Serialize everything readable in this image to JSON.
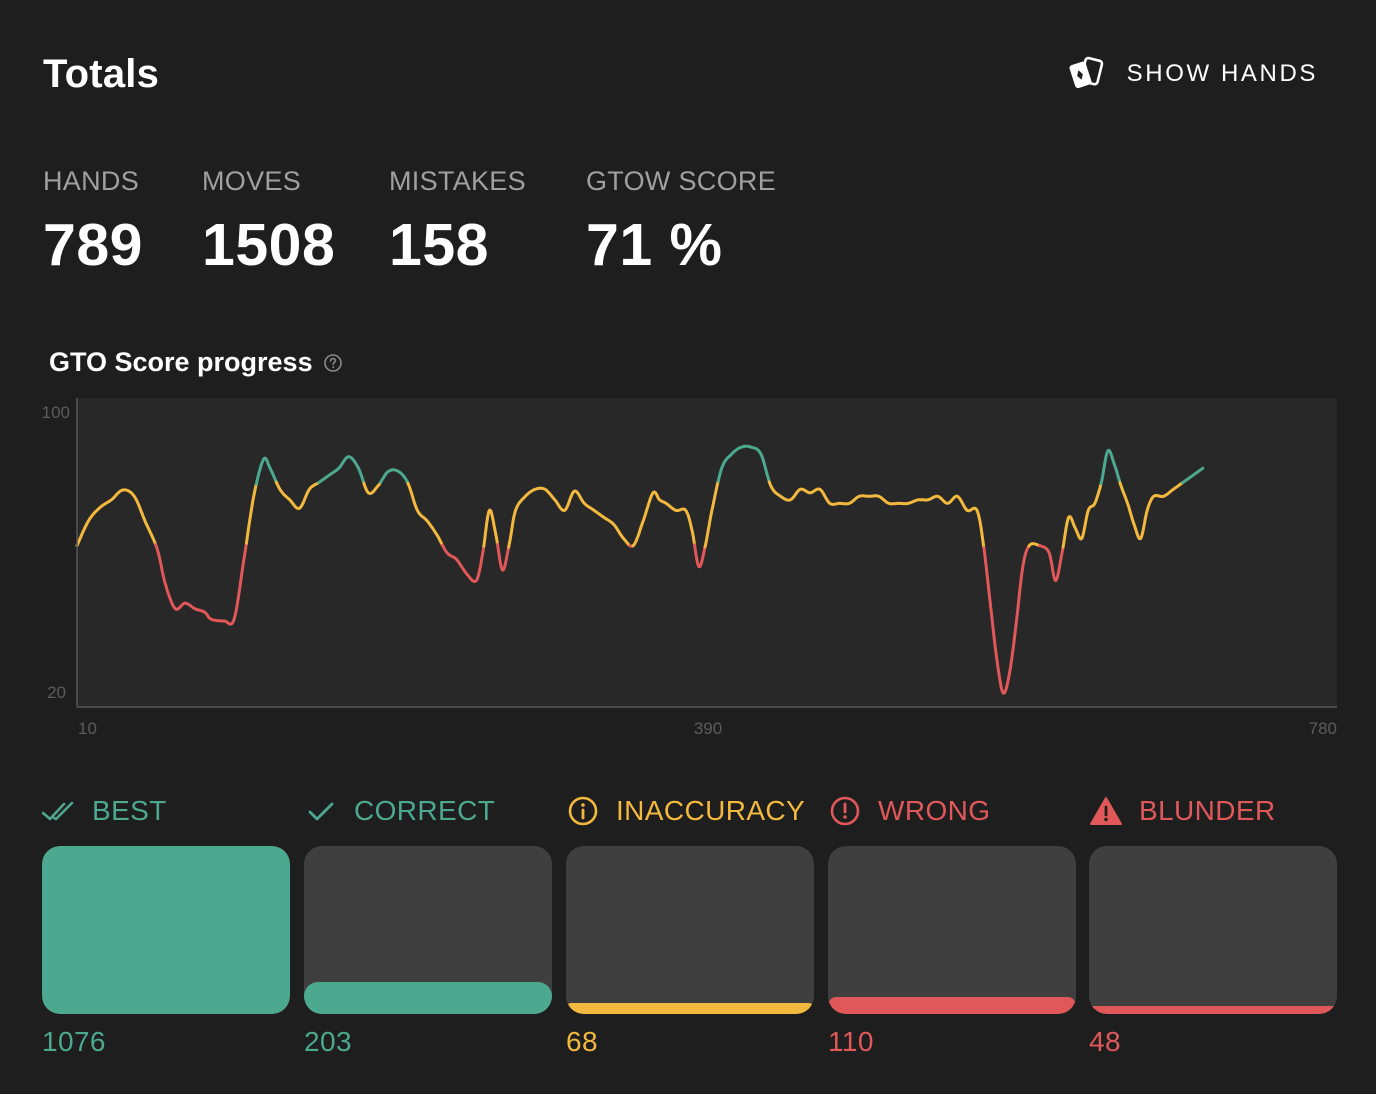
{
  "header": {
    "title": "Totals",
    "show_hands_label": "SHOW HANDS",
    "show_hands_icon": "playing-cards-icon"
  },
  "stats": [
    {
      "label": "HANDS",
      "value": "789"
    },
    {
      "label": "MOVES",
      "value": "1508"
    },
    {
      "label": "MISTAKES",
      "value": "158"
    },
    {
      "label": "GTOW SCORE",
      "value": "71 %"
    }
  ],
  "chart_title": "GTO Score progress",
  "chart_help_icon": "question-circle-icon",
  "chart_data": {
    "type": "line",
    "title": "GTO Score progress",
    "xlabel": "",
    "ylabel": "",
    "x_ticks": [
      "10",
      "390",
      "780"
    ],
    "y_ticks": [
      "100",
      "20"
    ],
    "xlim": [
      10,
      780
    ],
    "ylim": [
      16,
      104
    ],
    "grid": false,
    "color_bands": [
      {
        "label": "best",
        "min": 80,
        "color": "#4ca88e"
      },
      {
        "label": "ok",
        "min": 62,
        "color": "#f3b83e"
      },
      {
        "label": "low",
        "min": 0,
        "color": "#e0585a"
      }
    ],
    "series": [
      {
        "points": [
          [
            10,
            62
          ],
          [
            17,
            69
          ],
          [
            24,
            72.8
          ],
          [
            31,
            75
          ],
          [
            38,
            77.8
          ],
          [
            45,
            76
          ],
          [
            52,
            68.5
          ],
          [
            59,
            61
          ],
          [
            64,
            51
          ],
          [
            70,
            44
          ],
          [
            76,
            45.6
          ],
          [
            82,
            44
          ],
          [
            88,
            43
          ],
          [
            92,
            41
          ],
          [
            100,
            40.5
          ],
          [
            106,
            41
          ],
          [
            112,
            58
          ],
          [
            118,
            76
          ],
          [
            124,
            86.5
          ],
          [
            128,
            84
          ],
          [
            134,
            78
          ],
          [
            140,
            75
          ],
          [
            146,
            72.6
          ],
          [
            152,
            78
          ],
          [
            158,
            80
          ],
          [
            164,
            82
          ],
          [
            170,
            84
          ],
          [
            176,
            87.3
          ],
          [
            182,
            84
          ],
          [
            188,
            77
          ],
          [
            194,
            79
          ],
          [
            200,
            83
          ],
          [
            206,
            83.2
          ],
          [
            212,
            80
          ],
          [
            218,
            72
          ],
          [
            224,
            69
          ],
          [
            230,
            65
          ],
          [
            236,
            60
          ],
          [
            242,
            58
          ],
          [
            248,
            54
          ],
          [
            254,
            52
          ],
          [
            258,
            60
          ],
          [
            262,
            72
          ],
          [
            266,
            65
          ],
          [
            270,
            55
          ],
          [
            274,
            62
          ],
          [
            278,
            72
          ],
          [
            284,
            76
          ],
          [
            290,
            78
          ],
          [
            296,
            78
          ],
          [
            302,
            75
          ],
          [
            308,
            72
          ],
          [
            314,
            77.5
          ],
          [
            320,
            74
          ],
          [
            326,
            72
          ],
          [
            332,
            70
          ],
          [
            338,
            68
          ],
          [
            344,
            64
          ],
          [
            350,
            62
          ],
          [
            356,
            69
          ],
          [
            362,
            77
          ],
          [
            366,
            75
          ],
          [
            370,
            74
          ],
          [
            376,
            72
          ],
          [
            382,
            72
          ],
          [
            386,
            66
          ],
          [
            390,
            56
          ],
          [
            394,
            62
          ],
          [
            398,
            72
          ],
          [
            404,
            84
          ],
          [
            410,
            88
          ],
          [
            416,
            90
          ],
          [
            422,
            90
          ],
          [
            428,
            88
          ],
          [
            434,
            79
          ],
          [
            440,
            76
          ],
          [
            446,
            75
          ],
          [
            452,
            78
          ],
          [
            458,
            77
          ],
          [
            464,
            78
          ],
          [
            470,
            74
          ],
          [
            476,
            74
          ],
          [
            482,
            74
          ],
          [
            488,
            76
          ],
          [
            494,
            76
          ],
          [
            500,
            76
          ],
          [
            506,
            74
          ],
          [
            512,
            74
          ],
          [
            518,
            74
          ],
          [
            524,
            75
          ],
          [
            530,
            75
          ],
          [
            536,
            76
          ],
          [
            542,
            74
          ],
          [
            548,
            76
          ],
          [
            554,
            72
          ],
          [
            560,
            72
          ],
          [
            564,
            62
          ],
          [
            568,
            46
          ],
          [
            572,
            30
          ],
          [
            576,
            20
          ],
          [
            580,
            26
          ],
          [
            584,
            40
          ],
          [
            588,
            56
          ],
          [
            592,
            62
          ],
          [
            598,
            62
          ],
          [
            604,
            60
          ],
          [
            608,
            52
          ],
          [
            612,
            60
          ],
          [
            616,
            70
          ],
          [
            620,
            67
          ],
          [
            624,
            64
          ],
          [
            628,
            72
          ],
          [
            632,
            74
          ],
          [
            636,
            80
          ],
          [
            640,
            89
          ],
          [
            644,
            85
          ],
          [
            648,
            79
          ],
          [
            652,
            74
          ],
          [
            656,
            68
          ],
          [
            660,
            64
          ],
          [
            664,
            72
          ],
          [
            668,
            76
          ],
          [
            674,
            76
          ],
          [
            680,
            78
          ],
          [
            686,
            80
          ],
          [
            692,
            82
          ],
          [
            698,
            84
          ]
        ]
      }
    ]
  },
  "categories": [
    {
      "name": "BEST",
      "count": "1076",
      "color": "#4ca88e",
      "icon": "double-check-icon",
      "fill_fraction": 1.0
    },
    {
      "name": "CORRECT",
      "count": "203",
      "color": "#4ca88e",
      "icon": "check-icon",
      "fill_fraction": 0.19
    },
    {
      "name": "INACCURACY",
      "count": "68",
      "color": "#f3b83e",
      "icon": "info-circle-icon",
      "fill_fraction": 0.063
    },
    {
      "name": "WRONG",
      "count": "110",
      "color": "#e0585a",
      "icon": "exclamation-circle-icon",
      "fill_fraction": 0.102
    },
    {
      "name": "BLUNDER",
      "count": "48",
      "color": "#e0585a",
      "icon": "warning-triangle-icon",
      "fill_fraction": 0.045
    }
  ]
}
